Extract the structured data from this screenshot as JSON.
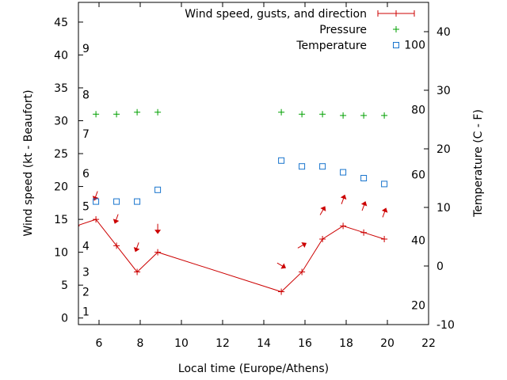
{
  "chart_data": {
    "type": "line",
    "xlabel": "Local time (Europe/Athens)",
    "ylabel": "Wind speed (kt - Beaufort)",
    "y2label": "Temperature (C - F)",
    "xlim": [
      5,
      22
    ],
    "ylim": [
      -1,
      48
    ],
    "y2lim": [
      -10,
      45
    ],
    "x_ticks": [
      6,
      8,
      10,
      12,
      14,
      16,
      18,
      20,
      22
    ],
    "y_ticks": [
      0,
      5,
      10,
      15,
      20,
      25,
      30,
      35,
      40,
      45
    ],
    "y2_ticks": [
      -10,
      0,
      10,
      20,
      30,
      40
    ],
    "beaufort_labels": [
      {
        "label": "1",
        "y": 1
      },
      {
        "label": "2",
        "y": 4
      },
      {
        "label": "3",
        "y": 7
      },
      {
        "label": "4",
        "y": 11
      },
      {
        "label": "5",
        "y": 17
      },
      {
        "label": "6",
        "y": 22
      },
      {
        "label": "7",
        "y": 28
      },
      {
        "label": "8",
        "y": 34
      },
      {
        "label": "9",
        "y": 41
      }
    ],
    "fahrenheit_labels": [
      {
        "label": "20",
        "y": -6.7
      },
      {
        "label": "40",
        "y": 4.4
      },
      {
        "label": "60",
        "y": 15.6
      },
      {
        "label": "80",
        "y": 26.7
      },
      {
        "label": "100",
        "y": 37.8
      }
    ],
    "legend": {
      "placement": "top-right",
      "entries": [
        "Wind speed, gusts, and direction",
        "Pressure",
        "Temperature"
      ]
    },
    "series": [
      {
        "name": "Wind speed, gusts, and direction",
        "color": "#cc0000",
        "x": [
          4.9,
          5.85,
          6.85,
          7.85,
          8.85,
          14.85,
          15.85,
          16.85,
          17.85,
          18.85,
          19.85
        ],
        "y": [
          14.0,
          15.0,
          11.0,
          7.0,
          10.0,
          4.0,
          7.0,
          12.0,
          14.0,
          13.0,
          12.0
        ],
        "arrows": [
          {
            "x": 5.85,
            "y": 18.6,
            "dir": 200
          },
          {
            "x": 6.85,
            "y": 15.1,
            "dir": 200
          },
          {
            "x": 7.85,
            "y": 10.8,
            "dir": 200
          },
          {
            "x": 8.85,
            "y": 13.6,
            "dir": 180
          },
          {
            "x": 14.85,
            "y": 8.0,
            "dir": 120
          },
          {
            "x": 15.85,
            "y": 11.0,
            "dir": 60
          },
          {
            "x": 16.85,
            "y": 16.3,
            "dir": 30
          },
          {
            "x": 17.85,
            "y": 18.0,
            "dir": 20
          },
          {
            "x": 18.85,
            "y": 17.0,
            "dir": 20
          },
          {
            "x": 19.85,
            "y": 16.0,
            "dir": 20
          }
        ]
      },
      {
        "name": "Pressure",
        "color": "#00a000",
        "axis": "y",
        "x": [
          5.85,
          6.85,
          7.85,
          8.85,
          14.85,
          15.85,
          16.85,
          17.85,
          18.85,
          19.85
        ],
        "y": [
          31.0,
          31.0,
          31.3,
          31.3,
          31.3,
          31.0,
          31.0,
          30.8,
          30.8,
          30.8
        ]
      },
      {
        "name": "Temperature",
        "color": "#1874cd",
        "axis": "y2",
        "x": [
          5.85,
          6.85,
          7.85,
          8.85,
          14.85,
          15.85,
          16.85,
          17.85,
          18.85,
          19.85
        ],
        "y": [
          11.0,
          11.0,
          11.0,
          13.0,
          18.0,
          17.0,
          17.0,
          16.0,
          15.0,
          14.0
        ]
      }
    ]
  }
}
